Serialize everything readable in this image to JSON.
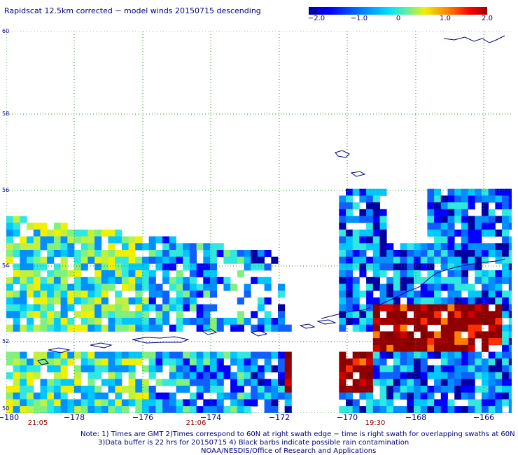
{
  "title": "Rapidscat 12.5km corrected − model winds 20150715 descending",
  "colorbar": {
    "labels": [
      "−2.0",
      "−1.0",
      "0",
      "1.0",
      "2.0"
    ],
    "min": -2.0,
    "max": 2.0,
    "colors": [
      "#0000a0",
      "#0000ff",
      "#0080ff",
      "#00e0ff",
      "#60f0a0",
      "#f0f000",
      "#ff8000",
      "#ff0000",
      "#a00000"
    ]
  },
  "map": {
    "lon_range": [
      -180,
      -165
    ],
    "lat_range": [
      50,
      60
    ],
    "lat_labels": [
      "60",
      "58",
      "56",
      "54",
      "52",
      "50"
    ],
    "lon_labels": [
      "−180",
      "−178",
      "−176",
      "−174",
      "−172",
      "−170",
      "−168",
      "−166"
    ],
    "time_labels": [
      "21:05",
      "21:06",
      "19:30"
    ]
  },
  "notes": [
    "Note: 1) Times are GMT 2)Times correspond to 60N at right swath edge − time is right swath for overlapping swaths at 60N",
    "3)Data buffer is 22 hrs for 20150715 4) Black barbs indicate possible rain contamination",
    "NOAA/NESDIS/Office of Research and Applications"
  ]
}
